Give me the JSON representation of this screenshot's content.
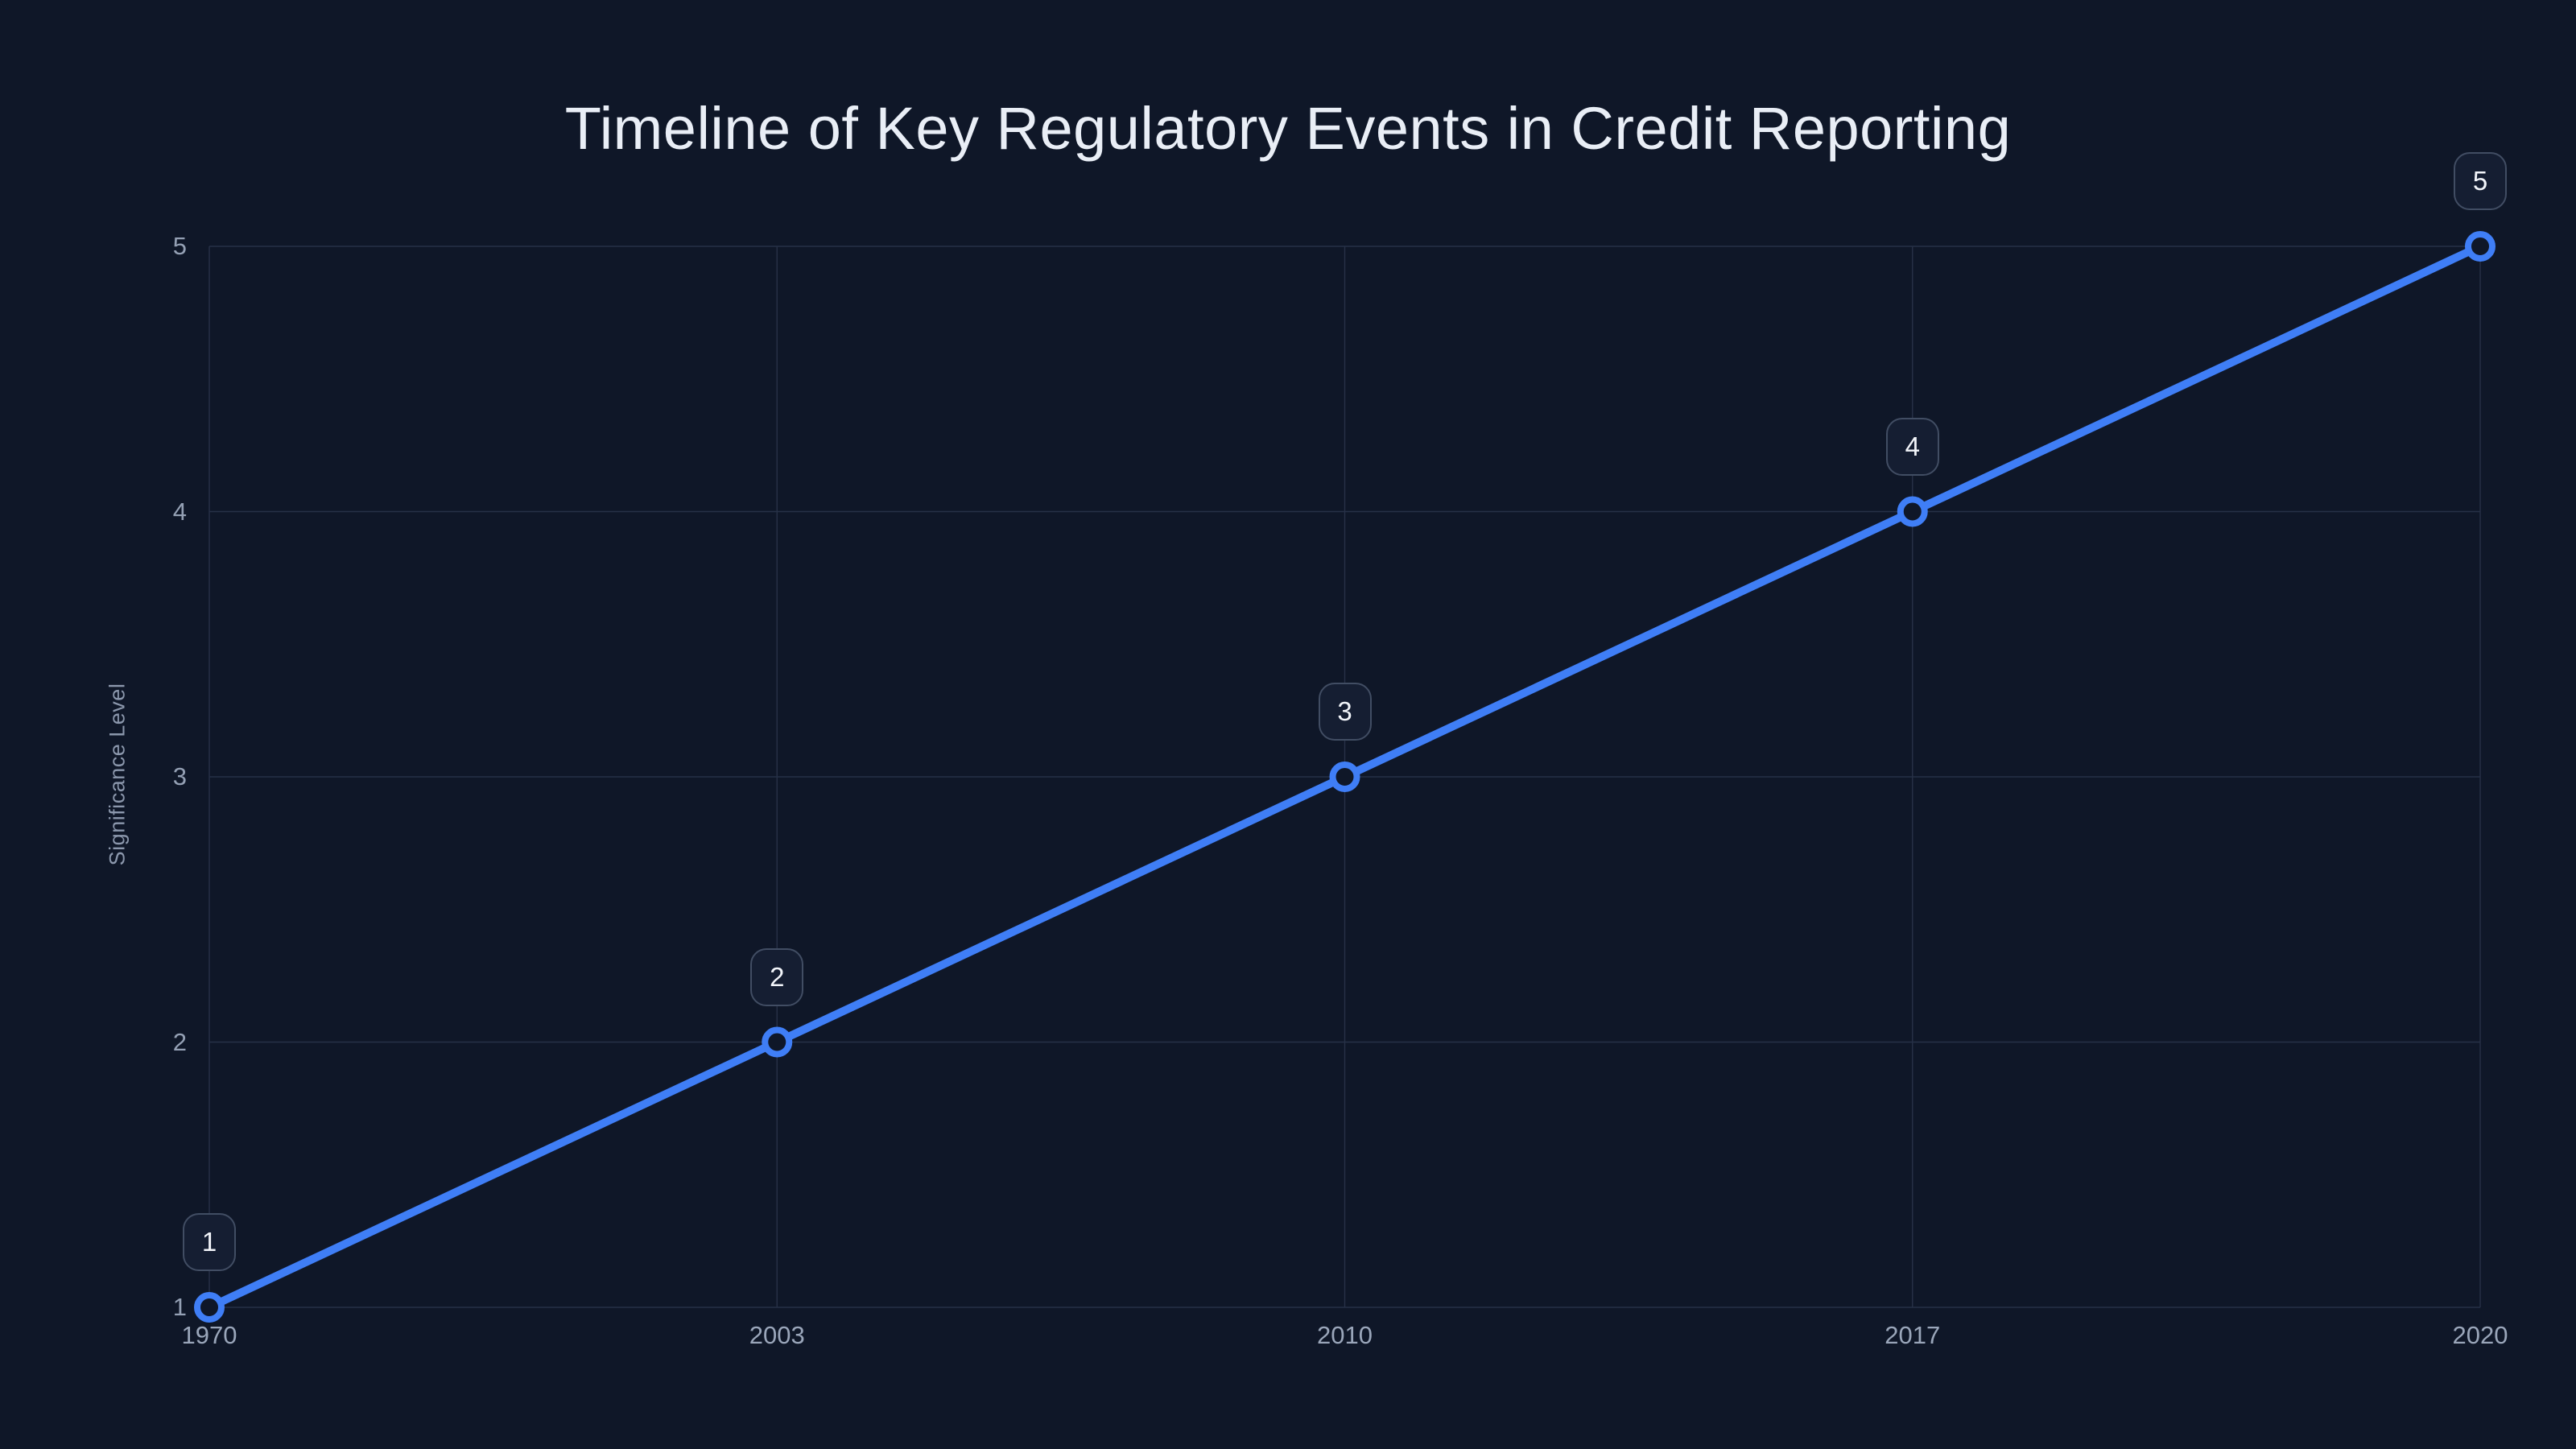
{
  "chart": {
    "title": "Timeline of Key Regulatory Events in Credit Reporting",
    "ylabel": "Significance Level"
  },
  "chart_data": {
    "type": "line",
    "title": "Timeline of Key Regulatory Events in Credit Reporting",
    "xlabel": "",
    "ylabel": "Significance Level",
    "categories": [
      "1970",
      "2003",
      "2010",
      "2017",
      "2020"
    ],
    "series": [
      {
        "name": "Significance Level",
        "values": [
          1,
          2,
          3,
          4,
          5
        ],
        "point_labels": [
          "1",
          "2",
          "3",
          "4",
          "5"
        ]
      }
    ],
    "x_axis_type": "category-equally-spaced",
    "yticks": [
      1,
      2,
      3,
      4,
      5
    ],
    "ylim": [
      1,
      5
    ],
    "grid": "on",
    "legend_position": "none",
    "marker_style": "hollow-circle",
    "point_label_style": "rounded-badge-above-point",
    "colors": {
      "background": "#0f1728",
      "line": "#3f7ef6",
      "marker_ring": "#3f7ef6",
      "marker_fill": "#0f1728",
      "grid": "#273147",
      "tick_label": "#94a0b4",
      "axis_title": "#8b97ac",
      "title": "#e9eef6",
      "point_label_text": "#f2f5fa",
      "point_label_border": "#414d63",
      "point_label_bg": "#151e32"
    }
  }
}
